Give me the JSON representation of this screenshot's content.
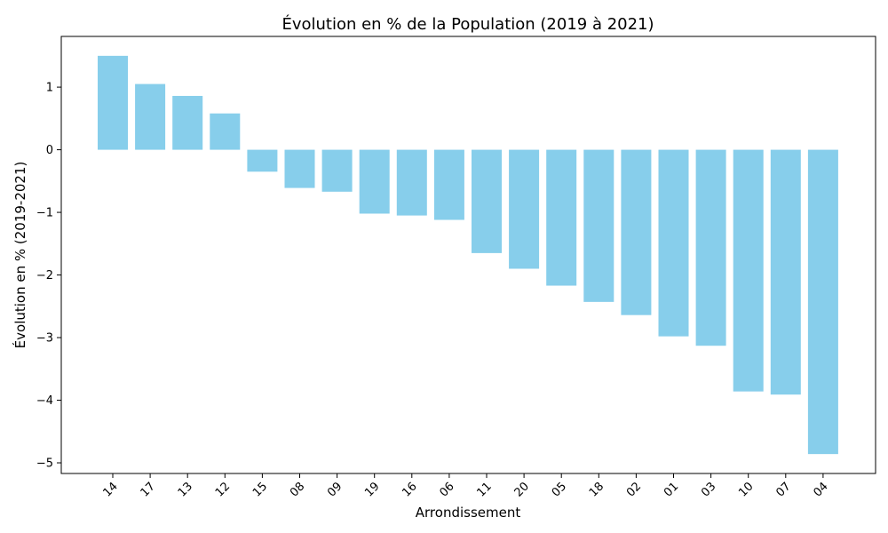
{
  "chart_data": {
    "type": "bar",
    "title": "Évolution en % de la Population (2019 à 2021)",
    "xlabel": "Arrondissement",
    "ylabel": "Évolution en % (2019-2021)",
    "categories": [
      "14",
      "17",
      "13",
      "12",
      "15",
      "08",
      "09",
      "19",
      "16",
      "06",
      "11",
      "20",
      "05",
      "18",
      "02",
      "01",
      "03",
      "10",
      "07",
      "04"
    ],
    "values": [
      1.5,
      1.05,
      0.86,
      0.58,
      -0.35,
      -0.61,
      -0.67,
      -1.02,
      -1.05,
      -1.12,
      -1.65,
      -1.9,
      -2.17,
      -2.43,
      -2.64,
      -2.98,
      -3.13,
      -3.86,
      -3.91,
      -4.86
    ],
    "yticks": [
      1,
      0,
      -1,
      -2,
      -3,
      -4,
      -5
    ],
    "ylim": [
      -5.17,
      1.81
    ],
    "bar_color": "#87CEEB",
    "grid": false,
    "legend": "none"
  }
}
